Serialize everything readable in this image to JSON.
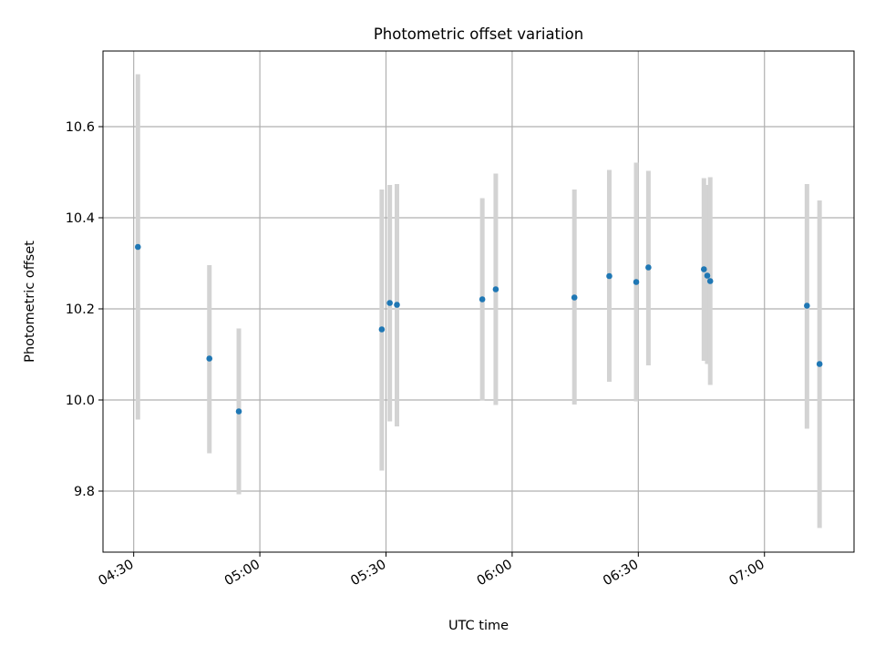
{
  "chart_data": {
    "type": "errorbar",
    "title": "Photometric offset variation",
    "xlabel": "UTC time",
    "ylabel": "Photometric offset",
    "x_ticks": [
      "04:30",
      "05:00",
      "05:30",
      "06:00",
      "06:30",
      "07:00"
    ],
    "y_ticks": [
      "9.8",
      "10.0",
      "10.2",
      "10.4",
      "10.6"
    ],
    "xlim_minutes": [
      262.7,
      441.3
    ],
    "ylim": [
      9.666,
      10.766
    ],
    "grid": true,
    "series": [
      {
        "name": "offset",
        "points": [
          {
            "t": "04:31",
            "minutes": 271.0,
            "value": 10.336,
            "low": 9.957,
            "high": 10.715
          },
          {
            "t": "04:48",
            "minutes": 288.0,
            "value": 10.091,
            "low": 9.883,
            "high": 10.296
          },
          {
            "t": "04:55",
            "minutes": 295.0,
            "value": 9.975,
            "low": 9.793,
            "high": 10.157
          },
          {
            "t": "05:29",
            "minutes": 329.0,
            "value": 10.155,
            "low": 9.845,
            "high": 10.462
          },
          {
            "t": "05:31",
            "minutes": 330.9,
            "value": 10.213,
            "low": 9.953,
            "high": 10.472
          },
          {
            "t": "05:33",
            "minutes": 332.6,
            "value": 10.209,
            "low": 9.942,
            "high": 10.474
          },
          {
            "t": "05:53",
            "minutes": 352.9,
            "value": 10.221,
            "low": 9.999,
            "high": 10.443
          },
          {
            "t": "05:56",
            "minutes": 356.1,
            "value": 10.243,
            "low": 9.989,
            "high": 10.497
          },
          {
            "t": "06:15",
            "minutes": 374.8,
            "value": 10.225,
            "low": 9.99,
            "high": 10.462
          },
          {
            "t": "06:23",
            "minutes": 383.1,
            "value": 10.272,
            "low": 10.04,
            "high": 10.505
          },
          {
            "t": "06:29",
            "minutes": 389.5,
            "value": 10.259,
            "low": 9.997,
            "high": 10.521
          },
          {
            "t": "06:32",
            "minutes": 392.4,
            "value": 10.291,
            "low": 10.076,
            "high": 10.503
          },
          {
            "t": "06:46",
            "minutes": 405.6,
            "value": 10.287,
            "low": 10.086,
            "high": 10.487
          },
          {
            "t": "06:46",
            "minutes": 406.4,
            "value": 10.273,
            "low": 10.079,
            "high": 10.472
          },
          {
            "t": "06:47",
            "minutes": 407.1,
            "value": 10.261,
            "low": 10.033,
            "high": 10.489
          },
          {
            "t": "07:10",
            "minutes": 430.1,
            "value": 10.207,
            "low": 9.937,
            "high": 10.474
          },
          {
            "t": "07:13",
            "minutes": 433.1,
            "value": 10.079,
            "low": 9.719,
            "high": 10.438
          }
        ]
      }
    ],
    "colors": {
      "marker": "#1f77b4",
      "errorbar": "#d3d3d3",
      "grid": "#b0b0b0",
      "axes": "#000000",
      "background": "#ffffff"
    }
  }
}
